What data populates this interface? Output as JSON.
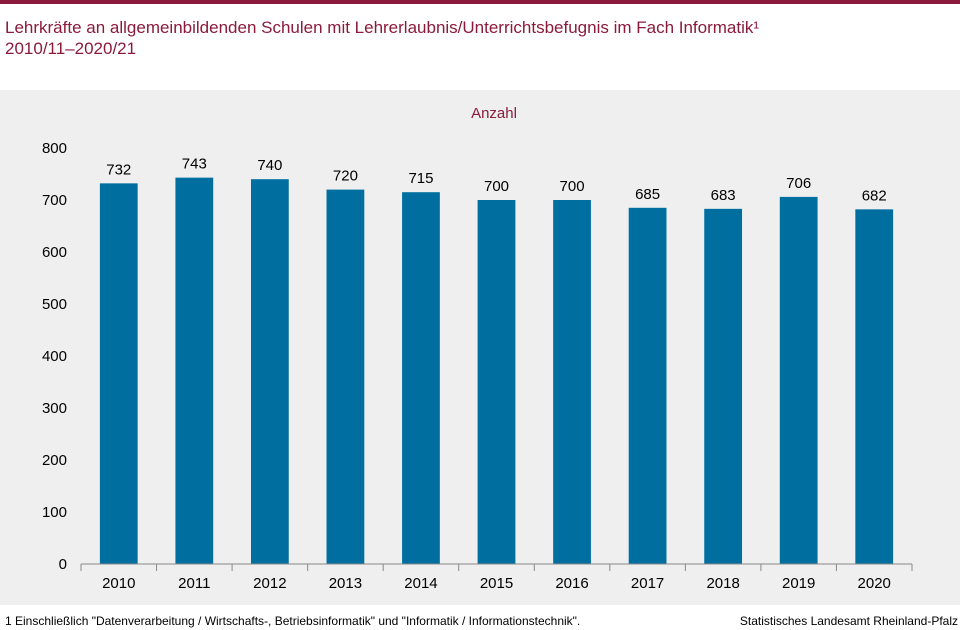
{
  "header": {
    "title_line1": "Lehrkräfte an allgemeinbildenden Schulen mit Lehrerlaubnis/Unterrichtsbefugnis im Fach Informatik¹",
    "title_line2": "2010/11–2020/21"
  },
  "colors": {
    "accent": "#8b1a3c",
    "bar": "#006fa0",
    "panel": "#efefef"
  },
  "chart_data": {
    "type": "bar",
    "title": "Lehrkräfte an allgemeinbildenden Schulen mit Lehrerlaubnis/Unterrichtsbefugnis im Fach Informatik¹ 2010/11–2020/21",
    "ylabel": "Anzahl",
    "xlabel": "",
    "categories": [
      "2010",
      "2011",
      "2012",
      "2013",
      "2014",
      "2015",
      "2016",
      "2017",
      "2018",
      "2019",
      "2020"
    ],
    "values": [
      732,
      743,
      740,
      720,
      715,
      700,
      700,
      685,
      683,
      706,
      682
    ],
    "ylim": [
      0,
      800
    ],
    "yticks": [
      0,
      100,
      200,
      300,
      400,
      500,
      600,
      700,
      800
    ],
    "grid": false,
    "data_labels": true
  },
  "footer": {
    "footnote": "1 Einschließlich \"Datenverarbeitung  / Wirtschafts-, Betriebsinformatik\"  und  \"Informatik  / Informationstechnik\".",
    "source": "Statistisches Landesamt Rheinland-Pfalz"
  }
}
